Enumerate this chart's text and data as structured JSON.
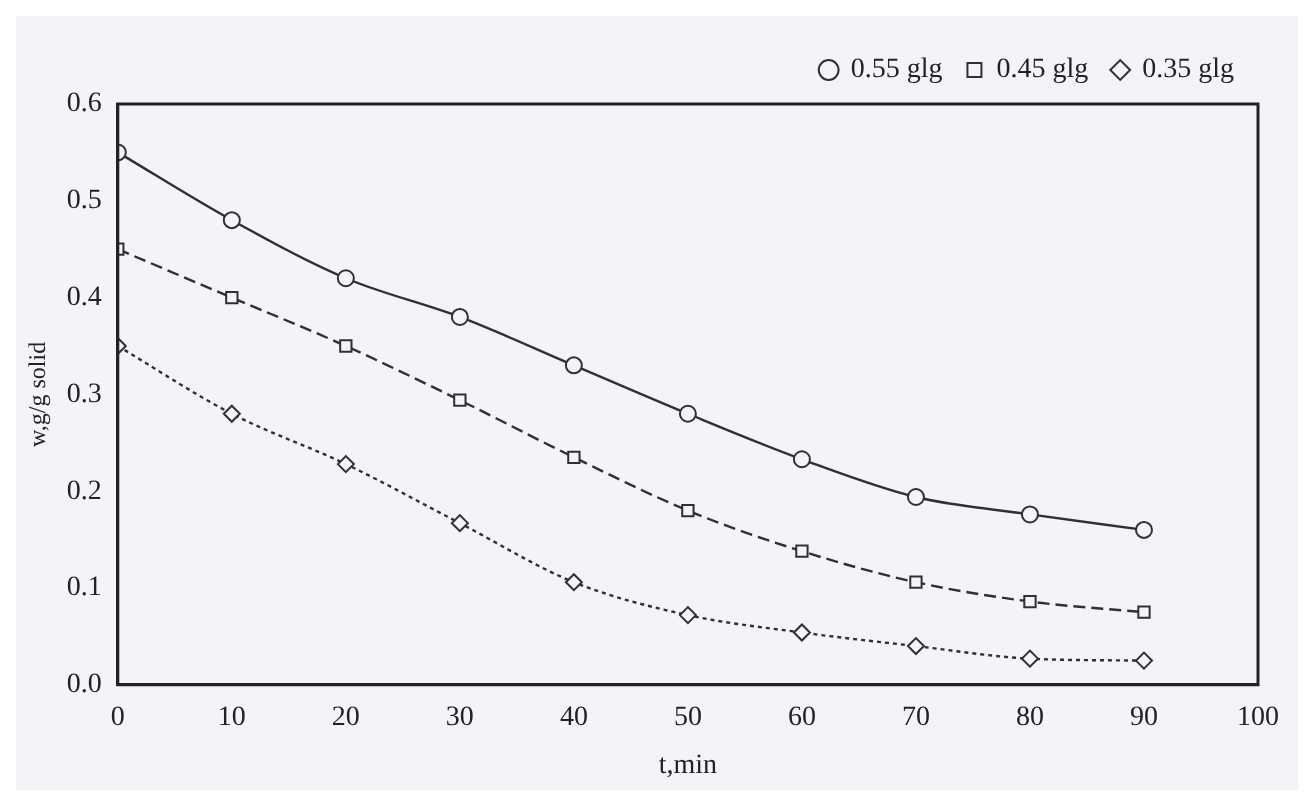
{
  "chart_data": {
    "type": "line",
    "xlabel": "t,min",
    "ylabel": "w,g/g solid",
    "x": [
      0,
      10,
      20,
      30,
      40,
      50,
      60,
      70,
      80,
      90
    ],
    "series": [
      {
        "name": "0.55 glg",
        "color": "#303030",
        "marker": "circle",
        "line_style": "solid",
        "values": [
          0.55,
          0.48,
          0.42,
          0.38,
          0.33,
          0.28,
          0.233,
          0.194,
          0.176,
          0.16
        ]
      },
      {
        "name": "0.45 glg",
        "color": "#303030",
        "marker": "square",
        "line_style": "dashed",
        "values": [
          0.45,
          0.4,
          0.35,
          0.294,
          0.235,
          0.18,
          0.138,
          0.106,
          0.086,
          0.075
        ]
      },
      {
        "name": "0.35 glg",
        "color": "#303030",
        "marker": "diamond",
        "line_style": "dotted",
        "values": [
          0.35,
          0.28,
          0.228,
          0.167,
          0.106,
          0.072,
          0.054,
          0.04,
          0.027,
          0.025
        ]
      }
    ],
    "xlim": [
      0,
      100
    ],
    "xticks": [
      0,
      10,
      20,
      30,
      40,
      50,
      60,
      70,
      80,
      90,
      100
    ],
    "ylim": [
      0,
      0.6
    ],
    "yticks": [
      {
        "value": 0,
        "label": "0.0"
      },
      0.1,
      0.2,
      0.3,
      0.4,
      0.5,
      0.6
    ],
    "grid": false,
    "legend": "top right"
  }
}
